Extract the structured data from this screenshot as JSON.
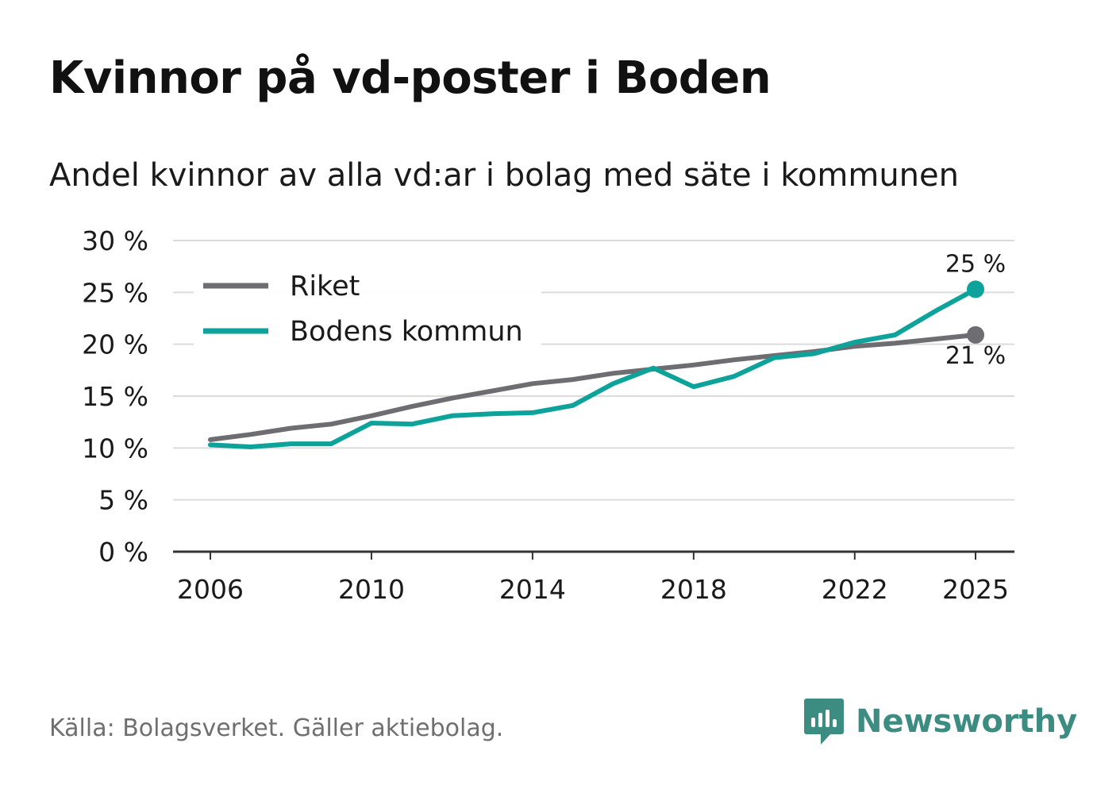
{
  "title": "Kvinnor på vd-poster i Boden",
  "subtitle": "Andel kvinnor av alla vd:ar i bolag med säte i kommunen",
  "source": "Källa: Bolagsverket. Gäller aktiebolag.",
  "brand": {
    "name": "Newsworthy",
    "icon": "newsworthy-logo-icon"
  },
  "colors": {
    "riket": "#6e6d72",
    "boden": "#0ea39a",
    "grid": "#dcdcdc",
    "axis": "#333333",
    "text": "#1a1a1a",
    "brand": "#3c8c82"
  },
  "chart_data": {
    "type": "line",
    "title": "Kvinnor på vd-poster i Boden",
    "subtitle": "Andel kvinnor av alla vd:ar i bolag med säte i kommunen",
    "xlabel": "",
    "ylabel": "",
    "x": [
      2006,
      2007,
      2008,
      2009,
      2010,
      2011,
      2012,
      2013,
      2014,
      2015,
      2016,
      2017,
      2018,
      2019,
      2020,
      2021,
      2022,
      2023,
      2024,
      2025
    ],
    "x_ticks": [
      "2006",
      "2010",
      "2014",
      "2018",
      "2022",
      "2025"
    ],
    "y_ticks": [
      "0 %",
      "5 %",
      "10 %",
      "15 %",
      "20 %",
      "25 %",
      "30 %"
    ],
    "ylim": [
      0,
      30
    ],
    "grid": true,
    "legend_position": "top-left",
    "series": [
      {
        "name": "Riket",
        "color": "#6e6d72",
        "values": [
          10.8,
          11.3,
          11.9,
          12.3,
          13.1,
          14.0,
          14.8,
          15.5,
          16.2,
          16.6,
          17.2,
          17.6,
          18.0,
          18.5,
          18.9,
          19.3,
          19.8,
          20.1,
          20.5,
          20.9
        ],
        "end_label": "21 %"
      },
      {
        "name": "Bodens kommun",
        "color": "#0ea39a",
        "values": [
          10.3,
          10.1,
          10.4,
          10.4,
          12.4,
          12.3,
          13.1,
          13.3,
          13.4,
          14.1,
          16.2,
          17.7,
          15.9,
          16.9,
          18.7,
          19.1,
          20.2,
          20.9,
          23.2,
          25.3
        ],
        "end_label": "25 %"
      }
    ]
  }
}
